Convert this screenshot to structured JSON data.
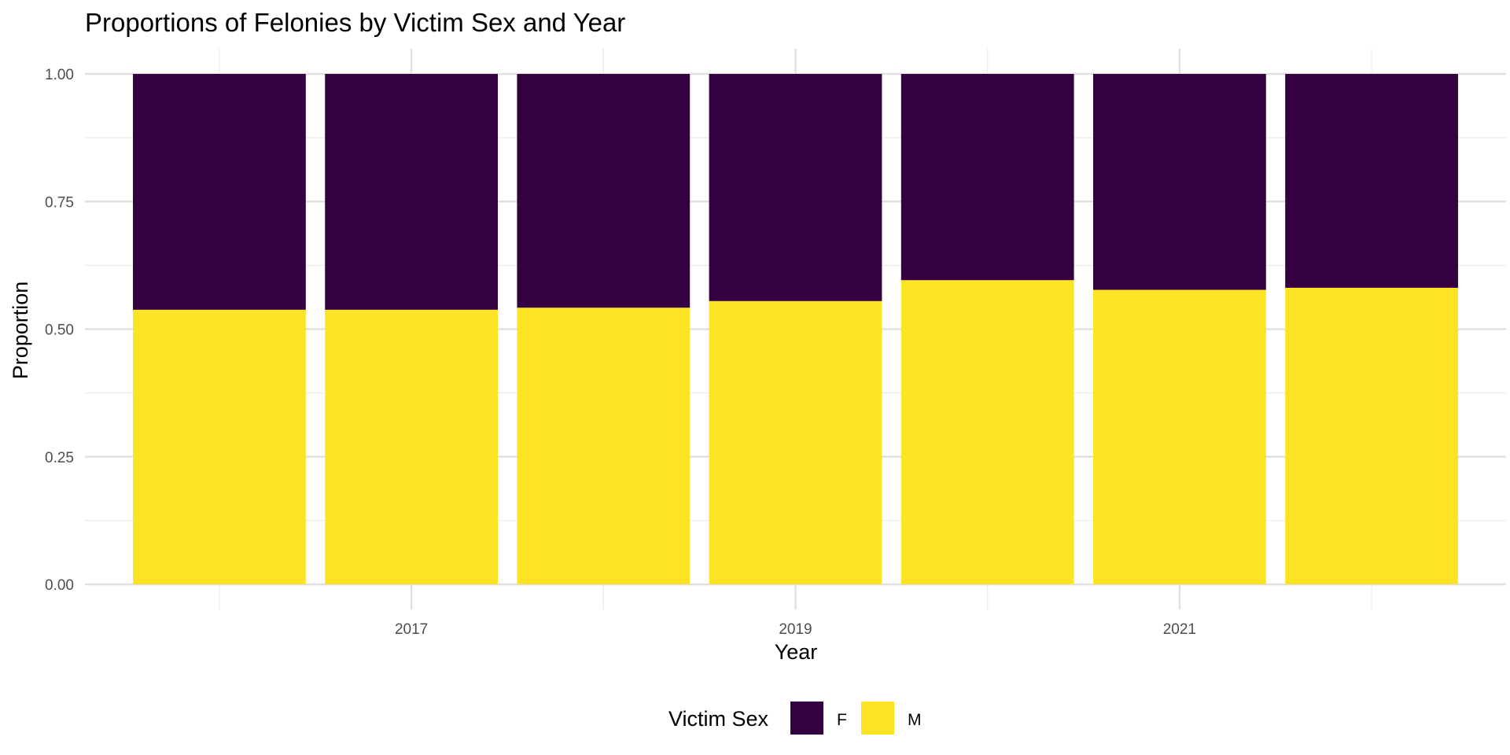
{
  "chart_data": {
    "type": "bar",
    "stacked": true,
    "title": "Proportions of Felonies by Victim Sex and Year",
    "xlabel": "Year",
    "ylabel": "Proportion",
    "x": [
      2016,
      2017,
      2018,
      2019,
      2020,
      2021,
      2022
    ],
    "x_tick_labels": [
      "2017",
      "2019",
      "2021"
    ],
    "x_tick_values": [
      2017,
      2019,
      2021
    ],
    "y_tick_labels": [
      "0.00",
      "0.25",
      "0.50",
      "0.75",
      "1.00"
    ],
    "y_tick_values": [
      0,
      0.25,
      0.5,
      0.75,
      1.0
    ],
    "ylim": [
      0,
      1
    ],
    "grid": true,
    "legend": {
      "title": "Victim Sex",
      "position": "bottom"
    },
    "series": [
      {
        "name": "F",
        "color": "#35003F",
        "values": [
          0.462,
          0.462,
          0.458,
          0.445,
          0.404,
          0.423,
          0.419
        ]
      },
      {
        "name": "M",
        "color": "#FDE325",
        "values": [
          0.538,
          0.538,
          0.542,
          0.555,
          0.596,
          0.577,
          0.581
        ]
      }
    ]
  }
}
